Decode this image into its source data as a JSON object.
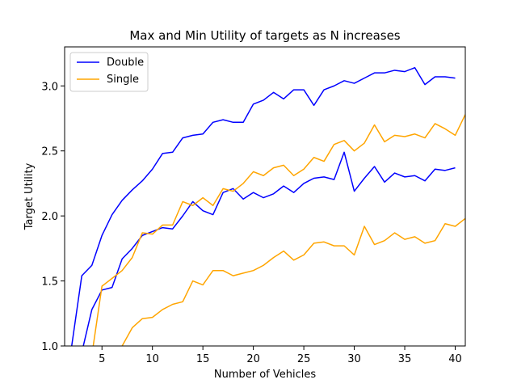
{
  "chart_data": {
    "type": "line",
    "title": "Max and Min Utility of targets as N increases",
    "xlabel": "Number of Vehicles",
    "ylabel": "Target Utility",
    "xlim": [
      1.3,
      41
    ],
    "ylim": [
      1.0,
      3.3
    ],
    "xticks": [
      5,
      10,
      15,
      20,
      25,
      30,
      35,
      40
    ],
    "yticks": [
      1.0,
      1.5,
      2.0,
      2.5,
      3.0
    ],
    "ytick_labels": [
      "1.0",
      "1.5",
      "2.0",
      "2.5",
      "3.0"
    ],
    "grid": false,
    "legend": {
      "placement": "top-left",
      "entries": [
        "Double",
        "Single"
      ]
    },
    "series": [
      {
        "name": "Double",
        "color": "#0000ff",
        "x": [
          2,
          3,
          4,
          5,
          6,
          7,
          8,
          9,
          10,
          11,
          12,
          13,
          14,
          15,
          16,
          17,
          18,
          19,
          20,
          21,
          22,
          23,
          24,
          25,
          26,
          27,
          28,
          29,
          30,
          31,
          32,
          33,
          34,
          35,
          36,
          37,
          38,
          39,
          40
        ],
        "y": [
          1.0,
          1.54,
          1.62,
          1.85,
          2.01,
          2.12,
          2.2,
          2.27,
          2.36,
          2.48,
          2.49,
          2.6,
          2.62,
          2.63,
          2.72,
          2.74,
          2.72,
          2.72,
          2.86,
          2.89,
          2.95,
          2.9,
          2.97,
          2.97,
          2.85,
          2.97,
          3.0,
          3.04,
          3.02,
          3.06,
          3.1,
          3.1,
          3.12,
          3.11,
          3.14,
          3.01,
          3.07,
          3.07,
          3.06
        ]
      },
      {
        "name": "Double",
        "color": "#0000ff",
        "x": [
          2,
          3,
          4,
          5,
          6,
          7,
          8,
          9,
          10,
          11,
          12,
          13,
          14,
          15,
          16,
          17,
          18,
          19,
          20,
          21,
          22,
          23,
          24,
          25,
          26,
          27,
          28,
          29,
          30,
          31,
          32,
          33,
          34,
          35,
          36,
          37,
          38,
          39,
          40
        ],
        "y": [
          0.9,
          0.95,
          1.28,
          1.43,
          1.45,
          1.67,
          1.75,
          1.85,
          1.88,
          1.91,
          1.9,
          2.0,
          2.11,
          2.04,
          2.01,
          2.18,
          2.21,
          2.13,
          2.18,
          2.14,
          2.17,
          2.23,
          2.18,
          2.25,
          2.29,
          2.3,
          2.28,
          2.49,
          2.19,
          2.29,
          2.38,
          2.26,
          2.33,
          2.3,
          2.31,
          2.27,
          2.36,
          2.35,
          2.37
        ]
      },
      {
        "name": "Single",
        "color": "#ffa500",
        "x": [
          2,
          3,
          4,
          5,
          6,
          7,
          8,
          9,
          10,
          11,
          12,
          13,
          14,
          15,
          16,
          17,
          18,
          19,
          20,
          21,
          22,
          23,
          24,
          25,
          26,
          27,
          28,
          29,
          30,
          31,
          32,
          33,
          34,
          35,
          36,
          37,
          38,
          39,
          40,
          41
        ],
        "y": [
          0.9,
          0.9,
          0.93,
          1.46,
          1.52,
          1.58,
          1.68,
          1.87,
          1.86,
          1.93,
          1.93,
          2.11,
          2.08,
          2.14,
          2.08,
          2.21,
          2.19,
          2.25,
          2.34,
          2.31,
          2.37,
          2.39,
          2.31,
          2.36,
          2.45,
          2.42,
          2.55,
          2.58,
          2.5,
          2.56,
          2.7,
          2.57,
          2.62,
          2.61,
          2.63,
          2.6,
          2.71,
          2.67,
          2.62,
          2.78
        ]
      },
      {
        "name": "Single",
        "color": "#ffa500",
        "x": [
          2,
          3,
          4,
          5,
          6,
          7,
          8,
          9,
          10,
          11,
          12,
          13,
          14,
          15,
          16,
          17,
          18,
          19,
          20,
          21,
          22,
          23,
          24,
          25,
          26,
          27,
          28,
          29,
          30,
          31,
          32,
          33,
          34,
          35,
          36,
          37,
          38,
          39,
          40,
          41
        ],
        "y": [
          0.9,
          0.9,
          0.9,
          0.92,
          0.95,
          1.0,
          1.14,
          1.21,
          1.22,
          1.28,
          1.32,
          1.34,
          1.5,
          1.47,
          1.58,
          1.58,
          1.54,
          1.56,
          1.58,
          1.62,
          1.68,
          1.73,
          1.66,
          1.7,
          1.79,
          1.8,
          1.77,
          1.77,
          1.7,
          1.92,
          1.78,
          1.81,
          1.87,
          1.82,
          1.84,
          1.79,
          1.81,
          1.94,
          1.92,
          1.98
        ]
      }
    ]
  }
}
